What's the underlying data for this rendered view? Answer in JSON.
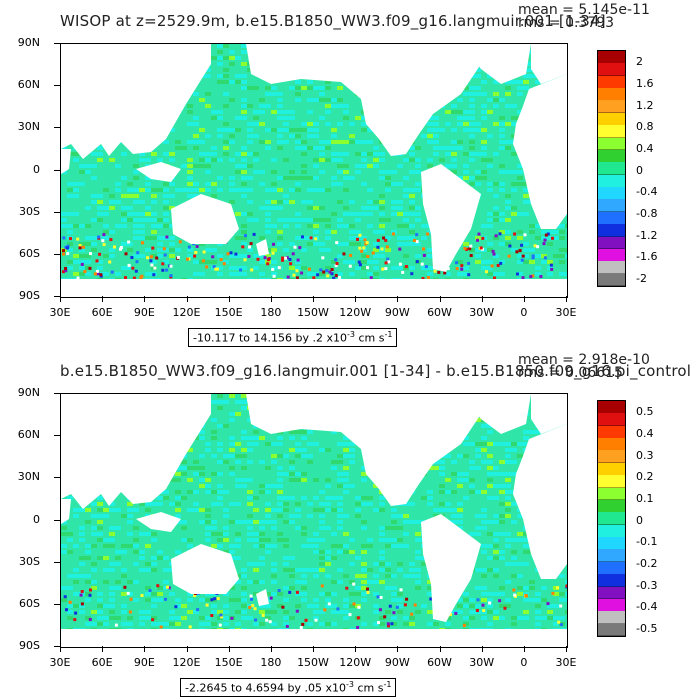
{
  "panels": [
    {
      "title": "WISOP at z=2529.9m, b.e15.B1850_WW3.f09_g16.langmuir.001 [1-34]",
      "mean_text": "mean = 5.145e-11",
      "rms_text": "rms = 0.3793",
      "range_prefix": "-10.117 to 14.156 by .2 x10",
      "range_exp": "-3",
      "range_units": " cm s",
      "range_units_exp": "-1",
      "colorbar_labels": [
        "2",
        "1.6",
        "1.2",
        "0.8",
        "0.4",
        "0",
        "-0.4",
        "-0.8",
        "-1.2",
        "-1.6",
        "-2"
      ]
    },
    {
      "title": "b.e15.B1850_WW3.f09_g16.langmuir.001 [1-34] - b.e15.B1850.f09_g16.pi_control",
      "mean_text": "mean = 2.918e-10",
      "rms_text": "rms = 0.06615",
      "range_prefix": "-2.2645 to 4.6594 by .05 x10",
      "range_exp": "-3",
      "range_units": " cm s",
      "range_units_exp": "-1",
      "colorbar_labels": [
        "0.5",
        "0.4",
        "0.3",
        "0.2",
        "0.1",
        "0",
        "-0.1",
        "-0.2",
        "-0.3",
        "-0.4",
        "-0.5"
      ]
    }
  ],
  "lat_labels": [
    "90N",
    "60N",
    "30N",
    "0",
    "30S",
    "60S",
    "90S"
  ],
  "lon_labels": [
    "30E",
    "60E",
    "90E",
    "120E",
    "150E",
    "180",
    "150W",
    "120W",
    "90W",
    "60W",
    "30W",
    "0",
    "30E"
  ],
  "colorbar_colors": [
    "#a80000",
    "#e01010",
    "#ff3a00",
    "#ff7f00",
    "#ffa020",
    "#ffd000",
    "#ffff30",
    "#8cff30",
    "#30d030",
    "#20e890",
    "#20f0e0",
    "#20d8ff",
    "#30a8ff",
    "#2070ff",
    "#1030e0",
    "#8010c0",
    "#e010e0",
    "#c0c0c0",
    "#7a7a7a"
  ],
  "land_color": "#ffffff",
  "ocean_color": "#2fe6a8"
}
